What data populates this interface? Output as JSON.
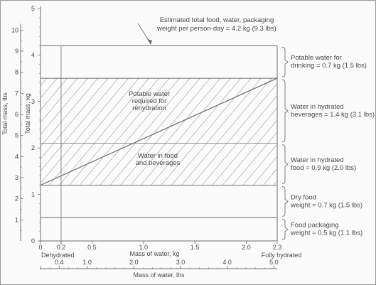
{
  "chart_data": {
    "type": "area",
    "title": "",
    "xlabel": "Mass of water, kg",
    "xlabel_secondary": "Mass of water, lbs",
    "ylabel": "Total mass, kg",
    "ylabel_secondary": "Total mass, lbs",
    "xlim": [
      0,
      2.3
    ],
    "ylim": [
      0,
      5
    ],
    "x_ticks_kg": [
      "0",
      "0.2",
      "0.5",
      "1.0",
      "1.5",
      "2.0",
      "2.3"
    ],
    "x_ticks_lbs": [
      "0.4",
      "1.0",
      "2.0",
      "3.0",
      "4.0",
      "5.0"
    ],
    "y_ticks_kg": [
      "0",
      "1",
      "2",
      "3",
      "4",
      "5"
    ],
    "y_ticks_lbs": [
      "1",
      "2",
      "3",
      "4",
      "5",
      "6",
      "7",
      "8",
      "9",
      "10"
    ],
    "x_end_labels": {
      "left": "Dehydrated",
      "right": "Fully hydrated"
    },
    "bands": [
      {
        "name": "Food packaging",
        "from": 0,
        "to": 0.5,
        "label": "Food packaging\nweight = 0.5 kg (1.1 lbs)"
      },
      {
        "name": "Dry food",
        "from": 0.5,
        "to": 1.2,
        "label": "Dry food\nweight = 0.7 kg (1.5 lbs)"
      },
      {
        "name": "Water in hydrated food",
        "from": 1.2,
        "to": 2.1,
        "label": "Water in hydrated\nfood = 0.9 kg (2.0 lbs)"
      },
      {
        "name": "Water in hydrated beverages",
        "from": 2.1,
        "to": 3.5,
        "label": "Water in hydrated\nbeverages = 1.4 kg (3.1 lbs)"
      },
      {
        "name": "Potable water for drinking",
        "from": 3.5,
        "to": 4.2,
        "label": "Potable water for\ndrinking = 0.7 kg (1.5 lbs)"
      }
    ],
    "rehydration_line": {
      "x": [
        0,
        2.3
      ],
      "y": [
        1.2,
        3.5
      ]
    },
    "inner_labels": {
      "potable": "Potable water\nrequired for\nrehydration",
      "water_in_food": "Water in food\nand beverages"
    },
    "total_annotation": "Estimated total food, water, packaging\nweight per person-day = 4.2 kg (9.3 lbs)",
    "total_value_kg": 4.2,
    "colors": {
      "lines": "#6e6e6e",
      "text": "#4a4a4a",
      "hatch": "#5a5a5a",
      "background": "#fbfbfb"
    }
  }
}
